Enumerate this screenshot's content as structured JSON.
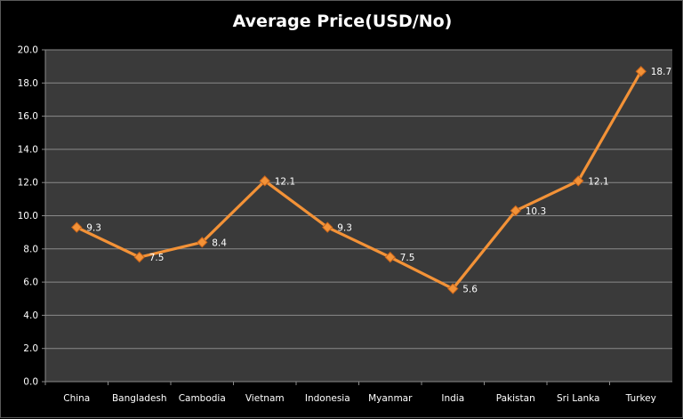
{
  "chart_data": {
    "type": "line",
    "title": "Average Price(USD/No)",
    "categories": [
      "China",
      "Bangladesh",
      "Cambodia",
      "Vietnam",
      "Indonesia",
      "Myanmar",
      "India",
      "Pakistan",
      "Sri Lanka",
      "Turkey"
    ],
    "series": [
      {
        "values": [
          9.3,
          7.5,
          8.4,
          12.1,
          9.3,
          7.5,
          5.6,
          10.3,
          12.1,
          18.7
        ],
        "data_labels": [
          "9.3",
          "7.5",
          "8.4",
          "12.1",
          "9.3",
          "7.5",
          "5.6",
          "10.3",
          "12.1",
          "18.7"
        ],
        "color": "#f39237",
        "marker": "diamond"
      }
    ],
    "ylim": [
      0,
      20
    ],
    "y_ticks": [
      "0.0",
      "2.0",
      "4.0",
      "6.0",
      "8.0",
      "10.0",
      "12.0",
      "14.0",
      "16.0",
      "18.0",
      "20.0"
    ],
    "xlabel": "",
    "ylabel": "",
    "grid": true,
    "legend": "none",
    "colors": {
      "background": "#000000",
      "plot_background": "#3a3a3a",
      "grid": "#8a8a8a",
      "text": "#ffffff"
    }
  }
}
